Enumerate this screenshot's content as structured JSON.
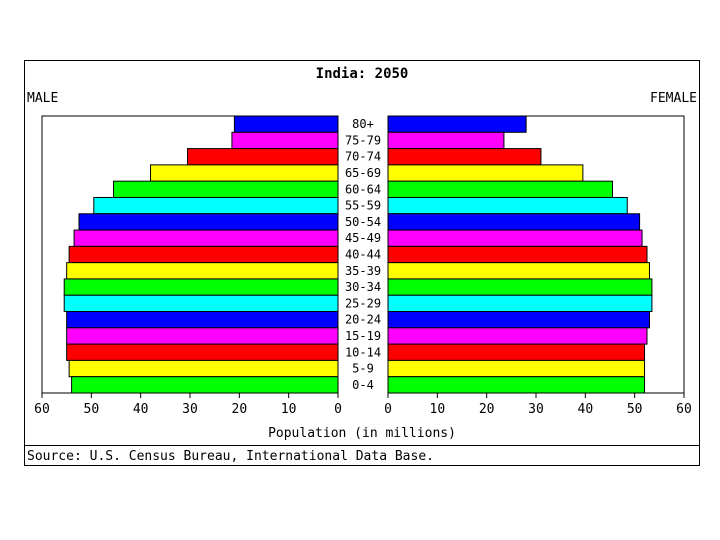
{
  "chart_data": {
    "type": "bar",
    "title": "India: 2050",
    "left_label": "MALE",
    "right_label": "FEMALE",
    "xlabel": "Population (in millions)",
    "source": "Source: U.S. Census Bureau, International Data Base.",
    "categories": [
      "80+",
      "75-79",
      "70-74",
      "65-69",
      "60-64",
      "55-59",
      "50-54",
      "45-49",
      "40-44",
      "35-39",
      "30-34",
      "25-29",
      "20-24",
      "15-19",
      "10-14",
      "5-9",
      "0-4"
    ],
    "series": [
      {
        "name": "MALE",
        "values": [
          21,
          21.5,
          30.5,
          38,
          45.5,
          49.5,
          52.5,
          53.5,
          54.5,
          55,
          55.5,
          55.5,
          55,
          55,
          55,
          54.5,
          54
        ]
      },
      {
        "name": "FEMALE",
        "values": [
          28,
          23.5,
          31,
          39.5,
          45.5,
          48.5,
          51,
          51.5,
          52.5,
          53,
          53.5,
          53.5,
          53,
          52.5,
          52,
          52,
          52
        ]
      }
    ],
    "bar_colors": [
      "#0000ff",
      "#ff00ff",
      "#ff0000",
      "#ffff00",
      "#00ff00",
      "#00ffff",
      "#0000ff",
      "#ff00ff",
      "#ff0000",
      "#ffff00",
      "#00ff00",
      "#00ffff",
      "#0000ff",
      "#ff00ff",
      "#ff0000",
      "#ffff00",
      "#00ff00"
    ],
    "xlim": [
      0,
      60
    ],
    "ticks": [
      "60",
      "50",
      "40",
      "30",
      "20",
      "10",
      "0"
    ],
    "right_ticks": [
      "0",
      "10",
      "20",
      "30",
      "40",
      "50",
      "60"
    ],
    "grid": false
  }
}
